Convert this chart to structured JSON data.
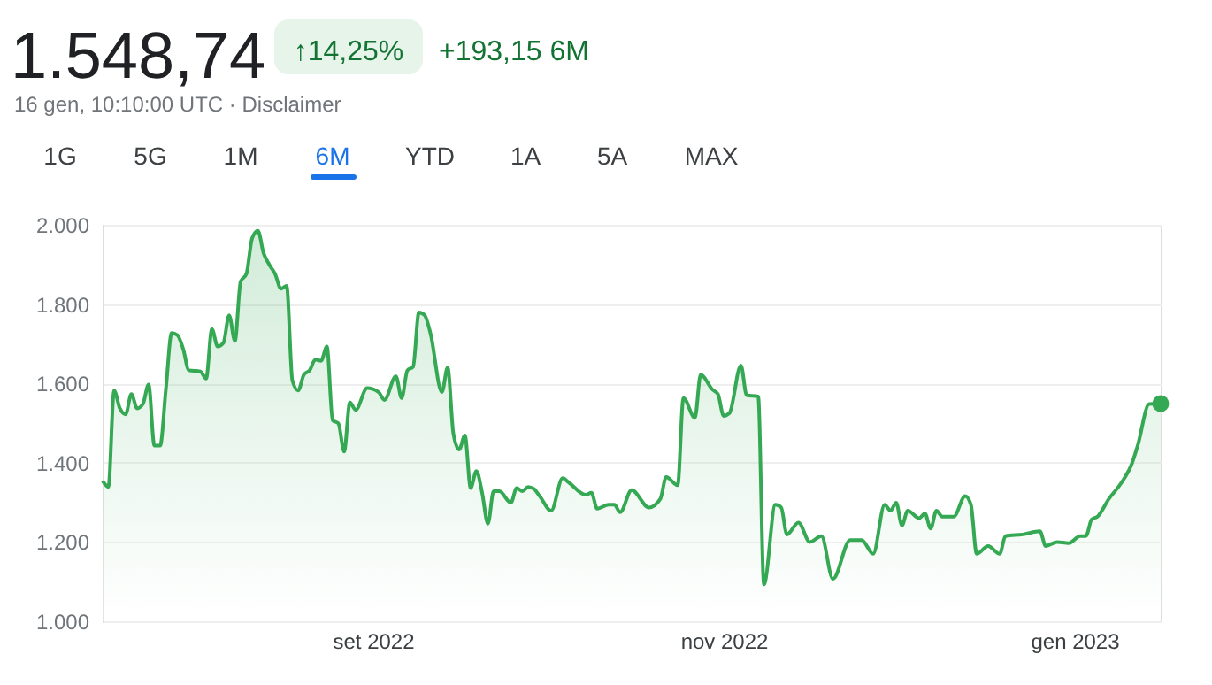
{
  "chart_data": {
    "type": "area",
    "title": "1.548,74",
    "subtitle": "16 gen, 10:10:00 UTC · Disclaimer",
    "annotations": [
      "↑14,25%",
      "+193,15 6M",
      "1G",
      "5G",
      "1M",
      "6M",
      "YTD",
      "1A",
      "5A",
      "MAX"
    ],
    "xlim": [
      "2022-07-16",
      "2023-01-16"
    ],
    "xticks": [
      {
        "value": "2022-09-01",
        "label": "set 2022"
      },
      {
        "value": "2022-11-01",
        "label": "nov 2022"
      },
      {
        "value": "2023-01-01",
        "label": "gen 2023"
      }
    ],
    "ylim": [
      1000,
      2000
    ],
    "yticks": [
      {
        "value": 1000,
        "label": "1.000"
      },
      {
        "value": 1200,
        "label": "1.200"
      },
      {
        "value": 1400,
        "label": "1.400"
      },
      {
        "value": 1600,
        "label": "1.600"
      },
      {
        "value": 1800,
        "label": "1.800"
      },
      {
        "value": 2000,
        "label": "2.000"
      }
    ],
    "grid": "y",
    "series": [
      {
        "color": "#34a853",
        "x": [
          "2022-07-16",
          "2022-07-17",
          "2022-07-18",
          "2022-07-19",
          "2022-07-20",
          "2022-07-21",
          "2022-07-22",
          "2022-07-23",
          "2022-07-24",
          "2022-07-25",
          "2022-07-26",
          "2022-07-27",
          "2022-07-28",
          "2022-07-29",
          "2022-07-30",
          "2022-07-31",
          "2022-08-02",
          "2022-08-03",
          "2022-08-04",
          "2022-08-05",
          "2022-08-06",
          "2022-08-07",
          "2022-08-08",
          "2022-08-09",
          "2022-08-10",
          "2022-08-11",
          "2022-08-12",
          "2022-08-13",
          "2022-08-14",
          "2022-08-15",
          "2022-08-16",
          "2022-08-17",
          "2022-08-18",
          "2022-08-19",
          "2022-08-20",
          "2022-08-21",
          "2022-08-22",
          "2022-08-23",
          "2022-08-24",
          "2022-08-25",
          "2022-08-26",
          "2022-08-27",
          "2022-08-28",
          "2022-08-29",
          "2022-08-31",
          "2022-09-02",
          "2022-09-03",
          "2022-09-05",
          "2022-09-06",
          "2022-09-07",
          "2022-09-08",
          "2022-09-09",
          "2022-09-10",
          "2022-09-11",
          "2022-09-13",
          "2022-09-14",
          "2022-09-15",
          "2022-09-16",
          "2022-09-17",
          "2022-09-18",
          "2022-09-19",
          "2022-09-20",
          "2022-09-21",
          "2022-09-22",
          "2022-09-23",
          "2022-09-25",
          "2022-09-26",
          "2022-09-27",
          "2022-09-28",
          "2022-09-29",
          "2022-09-30",
          "2022-10-02",
          "2022-10-04",
          "2022-10-05",
          "2022-10-08",
          "2022-10-09",
          "2022-10-10",
          "2022-10-12",
          "2022-10-13",
          "2022-10-14",
          "2022-10-16",
          "2022-10-19",
          "2022-10-21",
          "2022-10-22",
          "2022-10-24",
          "2022-10-25",
          "2022-10-27",
          "2022-10-28",
          "2022-10-30",
          "2022-10-31",
          "2022-11-01",
          "2022-11-02",
          "2022-11-04",
          "2022-11-05",
          "2022-11-07",
          "2022-11-08",
          "2022-11-10",
          "2022-11-11",
          "2022-11-12",
          "2022-11-14",
          "2022-11-16",
          "2022-11-18",
          "2022-11-20",
          "2022-11-23",
          "2022-11-25",
          "2022-11-27",
          "2022-11-29",
          "2022-11-30",
          "2022-12-01",
          "2022-12-02",
          "2022-12-03",
          "2022-12-05",
          "2022-12-06",
          "2022-12-07",
          "2022-12-08",
          "2022-12-09",
          "2022-12-11",
          "2022-12-13",
          "2022-12-14",
          "2022-12-15",
          "2022-12-17",
          "2022-12-19",
          "2022-12-20",
          "2022-12-23",
          "2022-12-26",
          "2022-12-27",
          "2022-12-29",
          "2022-12-31",
          "2023-01-02",
          "2023-01-03",
          "2023-01-04",
          "2023-01-05",
          "2023-01-07",
          "2023-01-09",
          "2023-01-11",
          "2023-01-12",
          "2023-01-14",
          "2023-01-16"
        ],
        "values": [
          1354,
          1339,
          1582,
          1537,
          1522,
          1573,
          1537,
          1548,
          1597,
          1443,
          1443,
          1585,
          1727,
          1722,
          1687,
          1633,
          1630,
          1612,
          1737,
          1693,
          1702,
          1772,
          1707,
          1857,
          1876,
          1966,
          1985,
          1928,
          1899,
          1876,
          1839,
          1846,
          1607,
          1582,
          1622,
          1633,
          1660,
          1657,
          1693,
          1507,
          1499,
          1428,
          1552,
          1533,
          1588,
          1578,
          1558,
          1618,
          1563,
          1633,
          1642,
          1779,
          1772,
          1727,
          1578,
          1640,
          1473,
          1433,
          1469,
          1336,
          1379,
          1324,
          1246,
          1328,
          1328,
          1299,
          1336,
          1328,
          1339,
          1334,
          1316,
          1279,
          1361,
          1351,
          1319,
          1324,
          1284,
          1294,
          1294,
          1275,
          1331,
          1287,
          1309,
          1364,
          1343,
          1563,
          1513,
          1622,
          1585,
          1573,
          1518,
          1525,
          1645,
          1570,
          1567,
          1093,
          1294,
          1287,
          1219,
          1249,
          1200,
          1215,
          1107,
          1205,
          1205,
          1170,
          1294,
          1279,
          1299,
          1242,
          1279,
          1260,
          1272,
          1234,
          1279,
          1264,
          1264,
          1316,
          1294,
          1170,
          1190,
          1170,
          1215,
          1219,
          1227,
          1190,
          1200,
          1197,
          1215,
          1215,
          1257,
          1264,
          1309,
          1346,
          1398,
          1443,
          1548,
          1549
        ]
      },
      {
        "type": "scatter",
        "marker": "circle",
        "color": "#34a853",
        "x": [
          "2023-01-16"
        ],
        "values": [
          1549
        ]
      }
    ]
  }
}
